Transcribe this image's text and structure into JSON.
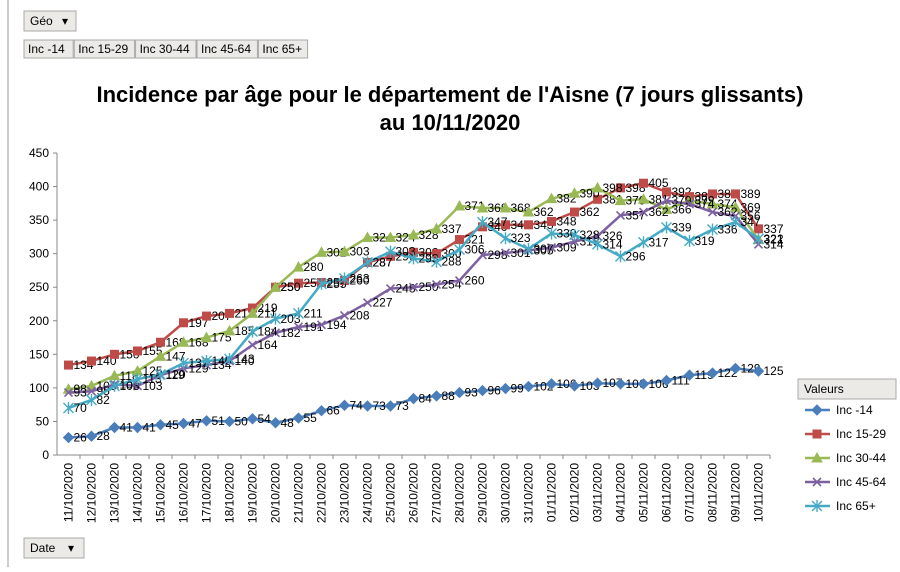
{
  "filters": {
    "geo": "Géo",
    "date": "Date"
  },
  "chart_data": {
    "type": "line",
    "title": "Incidence par âge pour le département de l'Aisne (7 jours glissants)",
    "subtitle": "au 10/11/2020",
    "legend_title": "Valeurs",
    "legend": "right",
    "grid": false,
    "categories": [
      "11/10/2020",
      "12/10/2020",
      "13/10/2020",
      "14/10/2020",
      "15/10/2020",
      "16/10/2020",
      "17/10/2020",
      "18/10/2020",
      "19/10/2020",
      "20/10/2020",
      "21/10/2020",
      "22/10/2020",
      "23/10/2020",
      "24/10/2020",
      "25/10/2020",
      "26/10/2020",
      "27/10/2020",
      "28/10/2020",
      "29/10/2020",
      "30/10/2020",
      "31/10/2020",
      "01/11/2020",
      "02/11/2020",
      "03/11/2020",
      "04/11/2020",
      "05/11/2020",
      "06/11/2020",
      "07/11/2020",
      "08/11/2020",
      "09/11/2020",
      "10/11/2020"
    ],
    "ylim": [
      0,
      450
    ],
    "yticks": [
      0,
      50,
      100,
      150,
      200,
      250,
      300,
      350,
      400,
      450
    ],
    "series": [
      {
        "name": "Inc -14",
        "color": "#4a7ebb",
        "marker": "diamond",
        "values": [
          26,
          28,
          41,
          41,
          45,
          47,
          51,
          50,
          54,
          48,
          55,
          66,
          74,
          73,
          73,
          84,
          88,
          93,
          96,
          99,
          102,
          106,
          103,
          107,
          106,
          106,
          111,
          119,
          122,
          129,
          125
        ]
      },
      {
        "name": "Inc 15-29",
        "color": "#be4b48",
        "marker": "square",
        "values": [
          134,
          140,
          150,
          155,
          168,
          197,
          207,
          211,
          219,
          250,
          256,
          257,
          260,
          287,
          296,
          302,
          300,
          321,
          340,
          343,
          343,
          348,
          362,
          381,
          398,
          405,
          392,
          385,
          389,
          389,
          337
        ]
      },
      {
        "name": "Inc 30-44",
        "color": "#98b954",
        "marker": "triangle",
        "values": [
          98,
          103,
          118,
          125,
          147,
          168,
          175,
          185,
          211,
          250,
          280,
          302,
          303,
          324,
          324,
          328,
          337,
          371,
          368,
          368,
          362,
          382,
          390,
          398,
          379,
          381,
          366,
          379,
          374,
          369,
          321
        ]
      },
      {
        "name": "Inc 45-64",
        "color": "#7d60a0",
        "marker": "x",
        "values": [
          93,
          95,
          105,
          103,
          119,
          129,
          134,
          140,
          164,
          182,
          191,
          194,
          208,
          227,
          248,
          250,
          254,
          260,
          298,
          301,
          305,
          309,
          318,
          326,
          357,
          362,
          379,
          374,
          362,
          356,
          314
        ]
      },
      {
        "name": "Inc 65+",
        "color": "#46aac5",
        "marker": "star",
        "values": [
          70,
          82,
          103,
          113,
          120,
          137,
          140,
          143,
          184,
          203,
          211,
          255,
          263,
          287,
          303,
          293,
          288,
          306,
          347,
          323,
          307,
          330,
          328,
          314,
          296,
          317,
          339,
          319,
          336,
          347,
          322
        ]
      }
    ]
  }
}
